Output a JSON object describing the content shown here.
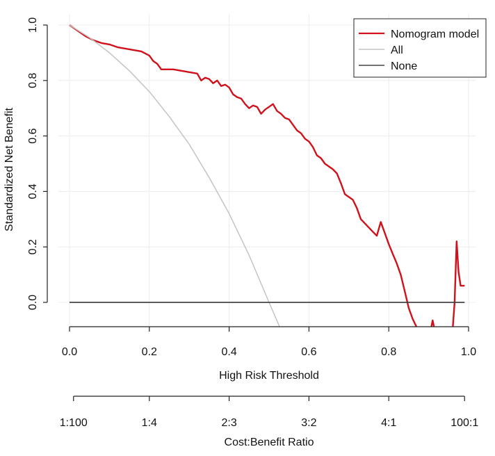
{
  "chart_data": {
    "type": "line",
    "title": "",
    "xlabel": "High Risk Threshold",
    "ylabel": "Standardized Net Benefit",
    "xlim": [
      0.0,
      1.0
    ],
    "ylim": [
      -0.1,
      1.0
    ],
    "x_ticks": [
      0.0,
      0.2,
      0.4,
      0.6,
      0.8,
      1.0
    ],
    "x_tick_labels": [
      "0.0",
      "0.2",
      "0.4",
      "0.6",
      "0.8",
      "1.0"
    ],
    "y_ticks": [
      0.0,
      0.2,
      0.4,
      0.6,
      0.8,
      1.0
    ],
    "y_tick_labels": [
      "0.0",
      "0.2",
      "0.4",
      "0.6",
      "0.8",
      "1.0"
    ],
    "grid": true,
    "legend_position": "top-right",
    "secondary_axis": {
      "label": "Cost:Benefit Ratio",
      "tick_labels": [
        "1:100",
        "1:4",
        "2:3",
        "3:2",
        "4:1",
        "100:1"
      ],
      "tick_positions": [
        0.01,
        0.2,
        0.4,
        0.6,
        0.8,
        0.99
      ]
    },
    "series": [
      {
        "name": "Nomogram model",
        "color": "#d0111b",
        "x": [
          0.0,
          0.02,
          0.04,
          0.06,
          0.08,
          0.1,
          0.12,
          0.14,
          0.16,
          0.18,
          0.2,
          0.21,
          0.22,
          0.23,
          0.24,
          0.26,
          0.28,
          0.3,
          0.32,
          0.33,
          0.34,
          0.35,
          0.36,
          0.37,
          0.38,
          0.39,
          0.4,
          0.41,
          0.42,
          0.43,
          0.44,
          0.45,
          0.46,
          0.47,
          0.48,
          0.49,
          0.5,
          0.51,
          0.52,
          0.53,
          0.54,
          0.55,
          0.56,
          0.57,
          0.58,
          0.59,
          0.6,
          0.61,
          0.62,
          0.63,
          0.64,
          0.65,
          0.66,
          0.67,
          0.68,
          0.69,
          0.7,
          0.71,
          0.72,
          0.73,
          0.74,
          0.75,
          0.76,
          0.77,
          0.78,
          0.79,
          0.8,
          0.81,
          0.82,
          0.83,
          0.84,
          0.85,
          0.86,
          0.87,
          0.875,
          0.89,
          0.905,
          0.91,
          0.915,
          0.92,
          0.94,
          0.96,
          0.965,
          0.97,
          0.975,
          0.98,
          0.99
        ],
        "y": [
          1.0,
          0.98,
          0.96,
          0.945,
          0.935,
          0.93,
          0.92,
          0.915,
          0.91,
          0.905,
          0.89,
          0.87,
          0.86,
          0.84,
          0.84,
          0.84,
          0.835,
          0.83,
          0.825,
          0.8,
          0.81,
          0.805,
          0.79,
          0.8,
          0.78,
          0.785,
          0.775,
          0.75,
          0.74,
          0.735,
          0.715,
          0.7,
          0.71,
          0.705,
          0.68,
          0.695,
          0.705,
          0.715,
          0.69,
          0.68,
          0.665,
          0.66,
          0.64,
          0.62,
          0.61,
          0.59,
          0.58,
          0.56,
          0.53,
          0.52,
          0.5,
          0.49,
          0.48,
          0.465,
          0.43,
          0.39,
          0.38,
          0.37,
          0.34,
          0.3,
          0.285,
          0.27,
          0.255,
          0.24,
          0.29,
          0.25,
          0.21,
          0.175,
          0.14,
          0.1,
          0.04,
          -0.02,
          -0.06,
          -0.09,
          -0.1,
          -0.1,
          -0.1,
          -0.065,
          -0.1,
          -0.1,
          -0.1,
          -0.1,
          0.0,
          0.22,
          0.11,
          0.06,
          0.06
        ]
      },
      {
        "name": "All",
        "color": "#c4c4c4",
        "x": [
          0.0,
          0.05,
          0.1,
          0.15,
          0.2,
          0.25,
          0.3,
          0.35,
          0.4,
          0.45,
          0.5,
          0.53,
          0.55
        ],
        "y": [
          1.0,
          0.955,
          0.9,
          0.835,
          0.76,
          0.67,
          0.57,
          0.45,
          0.32,
          0.17,
          0.0,
          -0.1,
          -0.1
        ]
      },
      {
        "name": "None",
        "color": "#444444",
        "x": [
          0.0,
          0.99
        ],
        "y": [
          0.0,
          0.0
        ]
      }
    ]
  }
}
